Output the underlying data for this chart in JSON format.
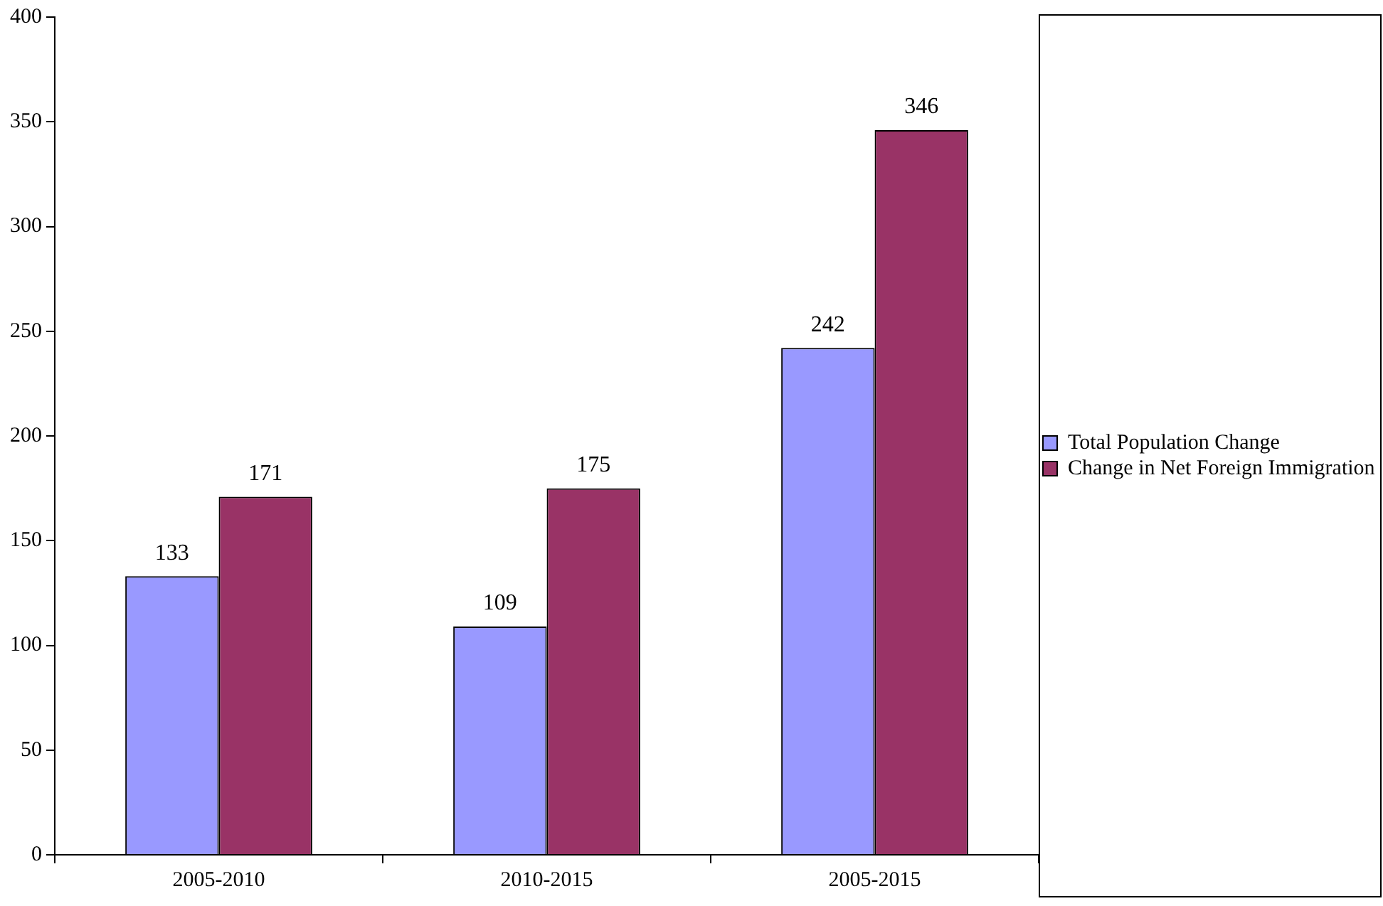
{
  "chart_data": {
    "type": "bar",
    "categories": [
      "2005-2010",
      "2010-2015",
      "2005-2015"
    ],
    "series": [
      {
        "name": "Total Population Change",
        "color": "#9999ff",
        "values": [
          133,
          109,
          242
        ]
      },
      {
        "name": "Change in Net Foreign Immigration",
        "color": "#993366",
        "values": [
          171,
          175,
          346
        ]
      }
    ],
    "ylim": [
      0,
      400
    ],
    "yticks": [
      0,
      50,
      100,
      150,
      200,
      250,
      300,
      350,
      400
    ],
    "grid": false,
    "legend": "right",
    "data_labels": true
  }
}
